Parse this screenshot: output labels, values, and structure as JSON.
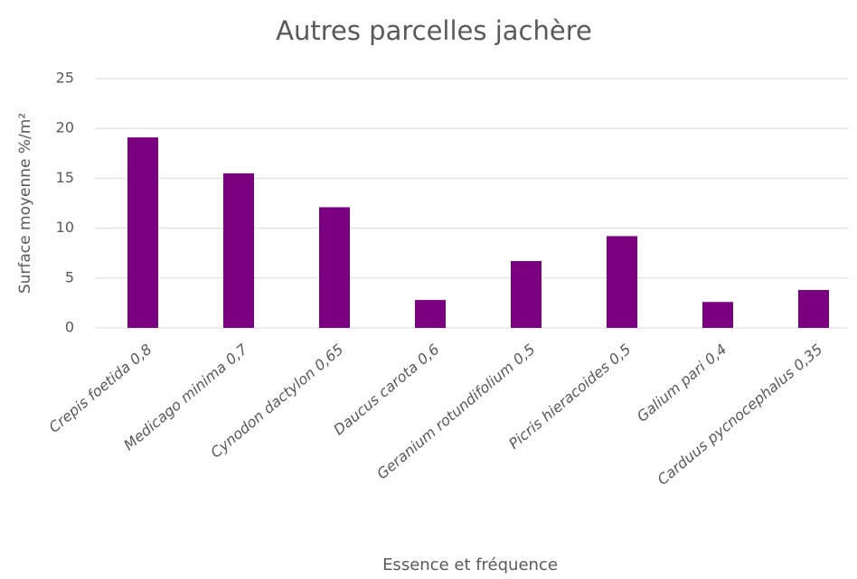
{
  "chart_data": {
    "type": "bar",
    "title": "Autres parcelles jachère",
    "x_label": "Essence et fréquence",
    "y_label": "Surface moyenne %/m²",
    "categories": [
      "Crepis foetida 0,8",
      "Medicago minima 0,7",
      "Cynodon dactylon 0,65",
      "Daucus carota 0,6",
      "Geranium rotundifolium 0,5",
      "Picris hieracoides 0,5",
      "Galium pari 0,4",
      "Carduus pycnocephalus 0,35"
    ],
    "values": [
      19.1,
      15.5,
      12.1,
      2.8,
      6.7,
      9.2,
      2.6,
      3.8
    ],
    "color": "#7b0080",
    "ylim": [
      0,
      25
    ],
    "yticks": [
      0,
      5,
      10,
      15,
      20,
      25
    ],
    "grid": true
  }
}
